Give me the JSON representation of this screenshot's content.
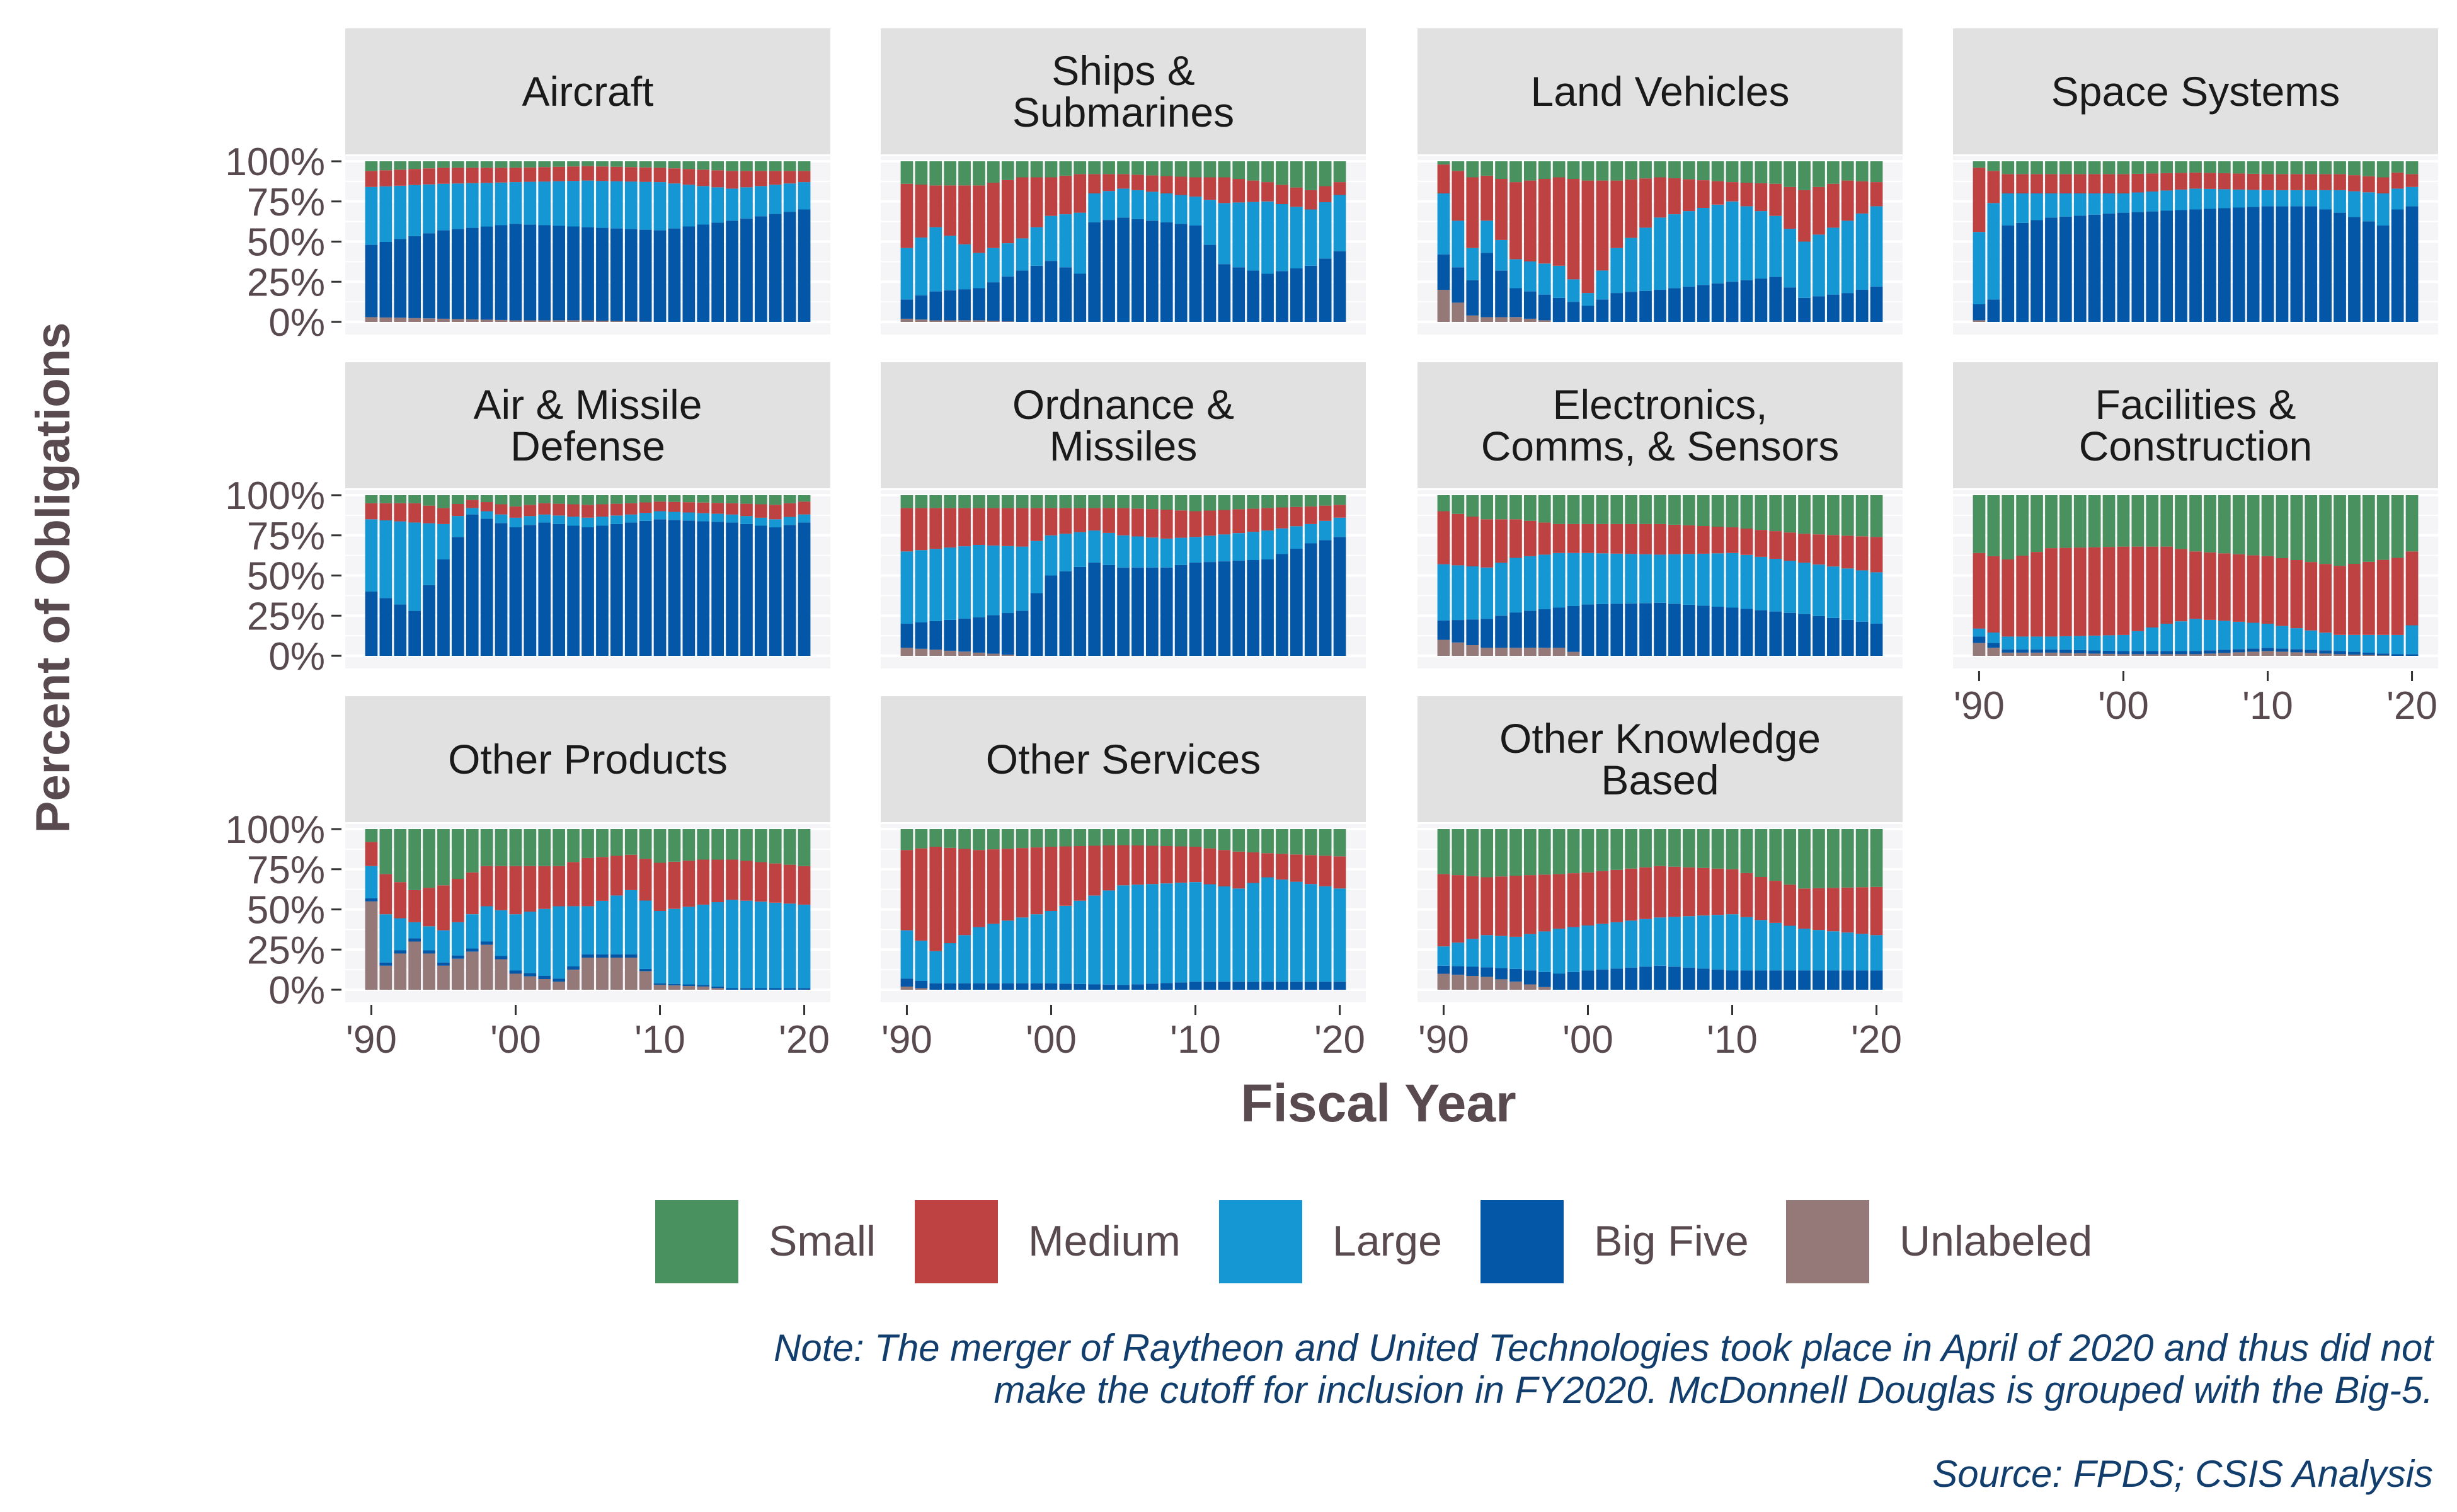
{
  "axis": {
    "y_title": "Percent of Obligations",
    "x_title": "Fiscal Year",
    "y_tick_labels": [
      "0%",
      "25%",
      "50%",
      "75%",
      "100%"
    ],
    "x_tick_labels": [
      "'90",
      "'00",
      "'10",
      "'20"
    ]
  },
  "legend": {
    "placement": "bottom",
    "items": [
      {
        "label": "Small",
        "color": "#4a9160"
      },
      {
        "label": "Medium",
        "color": "#bf4243"
      },
      {
        "label": "Large",
        "color": "#1597d3"
      },
      {
        "label": "Big Five",
        "color": "#0456a6"
      },
      {
        "label": "Unlabeled",
        "color": "#957878"
      }
    ]
  },
  "note": {
    "line1": "Note: The merger of Raytheon and United Technologies took place in April of 2020 and thus did not",
    "line2": "make the cutoff for inclusion in FY2020. McDonnell Douglas is grouped with the Big-5.",
    "source": "Source: FPDS; CSIS Analysis"
  },
  "colors": {
    "panel_bg": "#f5f5f7",
    "strip_bg": "#e1e1e1",
    "grid": "#e4e4ea",
    "axis_text": "#584a4f",
    "note_text": "#123e6e"
  },
  "chart_data": {
    "type": "bar",
    "stacked": true,
    "x_range": [
      1990,
      2020
    ],
    "ylim": [
      0,
      100
    ],
    "stack_order_bottom_to_top": [
      "Unlabeled",
      "Big Five",
      "Large",
      "Medium",
      "Small"
    ],
    "panels": [
      {
        "title": "Aircraft",
        "keys": [
          [
            1990,
            3,
            45,
            36,
            10,
            6
          ],
          [
            1995,
            2,
            55,
            29,
            10,
            4
          ],
          [
            2000,
            1,
            60,
            26,
            9,
            4
          ],
          [
            2005,
            1,
            58,
            29,
            9,
            3
          ],
          [
            2010,
            0,
            57,
            30,
            9,
            4
          ],
          [
            2015,
            0,
            63,
            20,
            11,
            6
          ],
          [
            2020,
            0,
            70,
            17,
            7,
            6
          ]
        ]
      },
      {
        "title": "Ships & Submarines",
        "keys": [
          [
            1990,
            2,
            12,
            32,
            40,
            14
          ],
          [
            1992,
            1,
            18,
            40,
            26,
            15
          ],
          [
            1995,
            1,
            20,
            22,
            42,
            15
          ],
          [
            1998,
            0,
            32,
            20,
            38,
            10
          ],
          [
            2000,
            0,
            38,
            28,
            24,
            10
          ],
          [
            2002,
            0,
            30,
            38,
            24,
            8
          ],
          [
            2003,
            0,
            62,
            18,
            12,
            8
          ],
          [
            2005,
            0,
            65,
            18,
            9,
            8
          ],
          [
            2010,
            0,
            60,
            18,
            12,
            10
          ],
          [
            2012,
            0,
            36,
            38,
            16,
            10
          ],
          [
            2015,
            0,
            30,
            45,
            12,
            13
          ],
          [
            2018,
            0,
            35,
            35,
            12,
            18
          ],
          [
            2020,
            0,
            44,
            35,
            8,
            13
          ]
        ]
      },
      {
        "title": "Land Vehicles",
        "keys": [
          [
            1990,
            20,
            22,
            38,
            18,
            2
          ],
          [
            1992,
            4,
            22,
            20,
            44,
            10
          ],
          [
            1993,
            3,
            40,
            20,
            28,
            9
          ],
          [
            1995,
            3,
            18,
            18,
            48,
            13
          ],
          [
            1998,
            0,
            15,
            20,
            55,
            10
          ],
          [
            2000,
            0,
            10,
            8,
            70,
            12
          ],
          [
            2002,
            0,
            18,
            28,
            42,
            12
          ],
          [
            2005,
            0,
            20,
            45,
            25,
            10
          ],
          [
            2010,
            0,
            25,
            50,
            12,
            13
          ],
          [
            2013,
            0,
            28,
            38,
            20,
            14
          ],
          [
            2015,
            0,
            15,
            35,
            32,
            18
          ],
          [
            2018,
            0,
            18,
            45,
            25,
            12
          ],
          [
            2020,
            0,
            22,
            50,
            15,
            13
          ]
        ]
      },
      {
        "title": "Space Systems",
        "keys": [
          [
            1990,
            1,
            10,
            45,
            40,
            4
          ],
          [
            1991,
            0,
            14,
            60,
            20,
            6
          ],
          [
            1992,
            0,
            60,
            20,
            12,
            8
          ],
          [
            1995,
            0,
            65,
            15,
            12,
            8
          ],
          [
            2000,
            0,
            68,
            12,
            12,
            8
          ],
          [
            2005,
            0,
            70,
            13,
            10,
            7
          ],
          [
            2010,
            0,
            72,
            10,
            10,
            8
          ],
          [
            2013,
            0,
            72,
            10,
            10,
            8
          ],
          [
            2015,
            0,
            68,
            14,
            10,
            8
          ],
          [
            2018,
            0,
            60,
            20,
            10,
            10
          ],
          [
            2019,
            0,
            70,
            13,
            10,
            7
          ],
          [
            2020,
            0,
            72,
            12,
            8,
            8
          ]
        ]
      },
      {
        "title": "Air & Missile Defense",
        "keys": [
          [
            1990,
            0,
            40,
            45,
            10,
            5
          ],
          [
            1993,
            0,
            28,
            55,
            12,
            5
          ],
          [
            1995,
            0,
            60,
            22,
            10,
            8
          ],
          [
            1997,
            0,
            88,
            4,
            5,
            3
          ],
          [
            2000,
            0,
            80,
            6,
            7,
            7
          ],
          [
            2002,
            0,
            83,
            5,
            7,
            5
          ],
          [
            2005,
            0,
            80,
            6,
            8,
            6
          ],
          [
            2008,
            0,
            83,
            5,
            7,
            5
          ],
          [
            2010,
            0,
            85,
            5,
            6,
            4
          ],
          [
            2015,
            0,
            83,
            5,
            7,
            5
          ],
          [
            2018,
            0,
            80,
            5,
            9,
            6
          ],
          [
            2020,
            0,
            83,
            5,
            8,
            4
          ]
        ]
      },
      {
        "title": "Ordnance & Missiles",
        "keys": [
          [
            1990,
            5,
            15,
            45,
            27,
            8
          ],
          [
            1995,
            2,
            22,
            45,
            23,
            8
          ],
          [
            1998,
            0,
            28,
            40,
            24,
            8
          ],
          [
            2000,
            0,
            50,
            25,
            17,
            8
          ],
          [
            2003,
            0,
            58,
            20,
            14,
            8
          ],
          [
            2005,
            0,
            55,
            20,
            17,
            8
          ],
          [
            2008,
            0,
            55,
            18,
            18,
            9
          ],
          [
            2010,
            0,
            58,
            16,
            16,
            10
          ],
          [
            2015,
            0,
            60,
            18,
            14,
            8
          ],
          [
            2018,
            0,
            70,
            12,
            11,
            7
          ],
          [
            2020,
            0,
            74,
            12,
            8,
            6
          ]
        ]
      },
      {
        "title": "Electronics, Comms, & Sensors",
        "keys": [
          [
            1990,
            10,
            12,
            35,
            33,
            10
          ],
          [
            1993,
            5,
            18,
            32,
            30,
            15
          ],
          [
            1995,
            5,
            22,
            34,
            24,
            15
          ],
          [
            1998,
            5,
            25,
            34,
            18,
            18
          ],
          [
            2000,
            0,
            32,
            32,
            18,
            18
          ],
          [
            2005,
            0,
            33,
            30,
            19,
            18
          ],
          [
            2010,
            0,
            30,
            34,
            16,
            20
          ],
          [
            2015,
            0,
            26,
            32,
            18,
            24
          ],
          [
            2020,
            0,
            20,
            32,
            22,
            26
          ]
        ]
      },
      {
        "title": "Facilities & Construction",
        "keys": [
          [
            1990,
            8,
            4,
            5,
            47,
            36
          ],
          [
            1992,
            2,
            2,
            8,
            48,
            40
          ],
          [
            1995,
            2,
            2,
            8,
            55,
            33
          ],
          [
            2000,
            1,
            2,
            10,
            55,
            32
          ],
          [
            2003,
            1,
            2,
            17,
            48,
            32
          ],
          [
            2005,
            1,
            2,
            20,
            42,
            35
          ],
          [
            2010,
            3,
            2,
            15,
            42,
            38
          ],
          [
            2015,
            1,
            2,
            10,
            43,
            44
          ],
          [
            2019,
            0,
            1,
            12,
            48,
            39
          ],
          [
            2020,
            0,
            1,
            18,
            46,
            35
          ]
        ]
      },
      {
        "title": "Other Products",
        "keys": [
          [
            1990,
            55,
            2,
            20,
            15,
            8
          ],
          [
            1991,
            15,
            2,
            30,
            25,
            28
          ],
          [
            1993,
            30,
            2,
            10,
            20,
            38
          ],
          [
            1995,
            15,
            2,
            20,
            28,
            35
          ],
          [
            1998,
            28,
            2,
            22,
            25,
            23
          ],
          [
            2000,
            10,
            2,
            35,
            30,
            23
          ],
          [
            2003,
            5,
            2,
            45,
            25,
            23
          ],
          [
            2005,
            20,
            2,
            30,
            30,
            18
          ],
          [
            2008,
            20,
            2,
            40,
            22,
            16
          ],
          [
            2010,
            3,
            1,
            45,
            30,
            21
          ],
          [
            2013,
            2,
            1,
            50,
            28,
            19
          ],
          [
            2015,
            0,
            1,
            55,
            25,
            19
          ],
          [
            2020,
            0,
            1,
            52,
            24,
            23
          ]
        ]
      },
      {
        "title": "Other Services",
        "keys": [
          [
            1990,
            2,
            5,
            30,
            50,
            13
          ],
          [
            1992,
            0,
            4,
            20,
            65,
            11
          ],
          [
            1995,
            0,
            4,
            35,
            48,
            13
          ],
          [
            2000,
            0,
            4,
            45,
            40,
            11
          ],
          [
            2005,
            0,
            3,
            62,
            25,
            10
          ],
          [
            2010,
            0,
            5,
            62,
            22,
            11
          ],
          [
            2013,
            0,
            5,
            58,
            23,
            14
          ],
          [
            2015,
            0,
            5,
            65,
            15,
            15
          ],
          [
            2020,
            0,
            5,
            58,
            20,
            17
          ]
        ]
      },
      {
        "title": "Other Knowledge Based",
        "keys": [
          [
            1990,
            10,
            5,
            12,
            45,
            28
          ],
          [
            1993,
            8,
            6,
            20,
            36,
            30
          ],
          [
            1995,
            5,
            8,
            20,
            38,
            29
          ],
          [
            1998,
            0,
            10,
            28,
            34,
            28
          ],
          [
            2000,
            0,
            12,
            28,
            33,
            27
          ],
          [
            2005,
            0,
            15,
            30,
            32,
            23
          ],
          [
            2010,
            0,
            12,
            35,
            28,
            25
          ],
          [
            2015,
            0,
            12,
            26,
            25,
            37
          ],
          [
            2020,
            0,
            12,
            22,
            30,
            36
          ]
        ]
      }
    ]
  }
}
